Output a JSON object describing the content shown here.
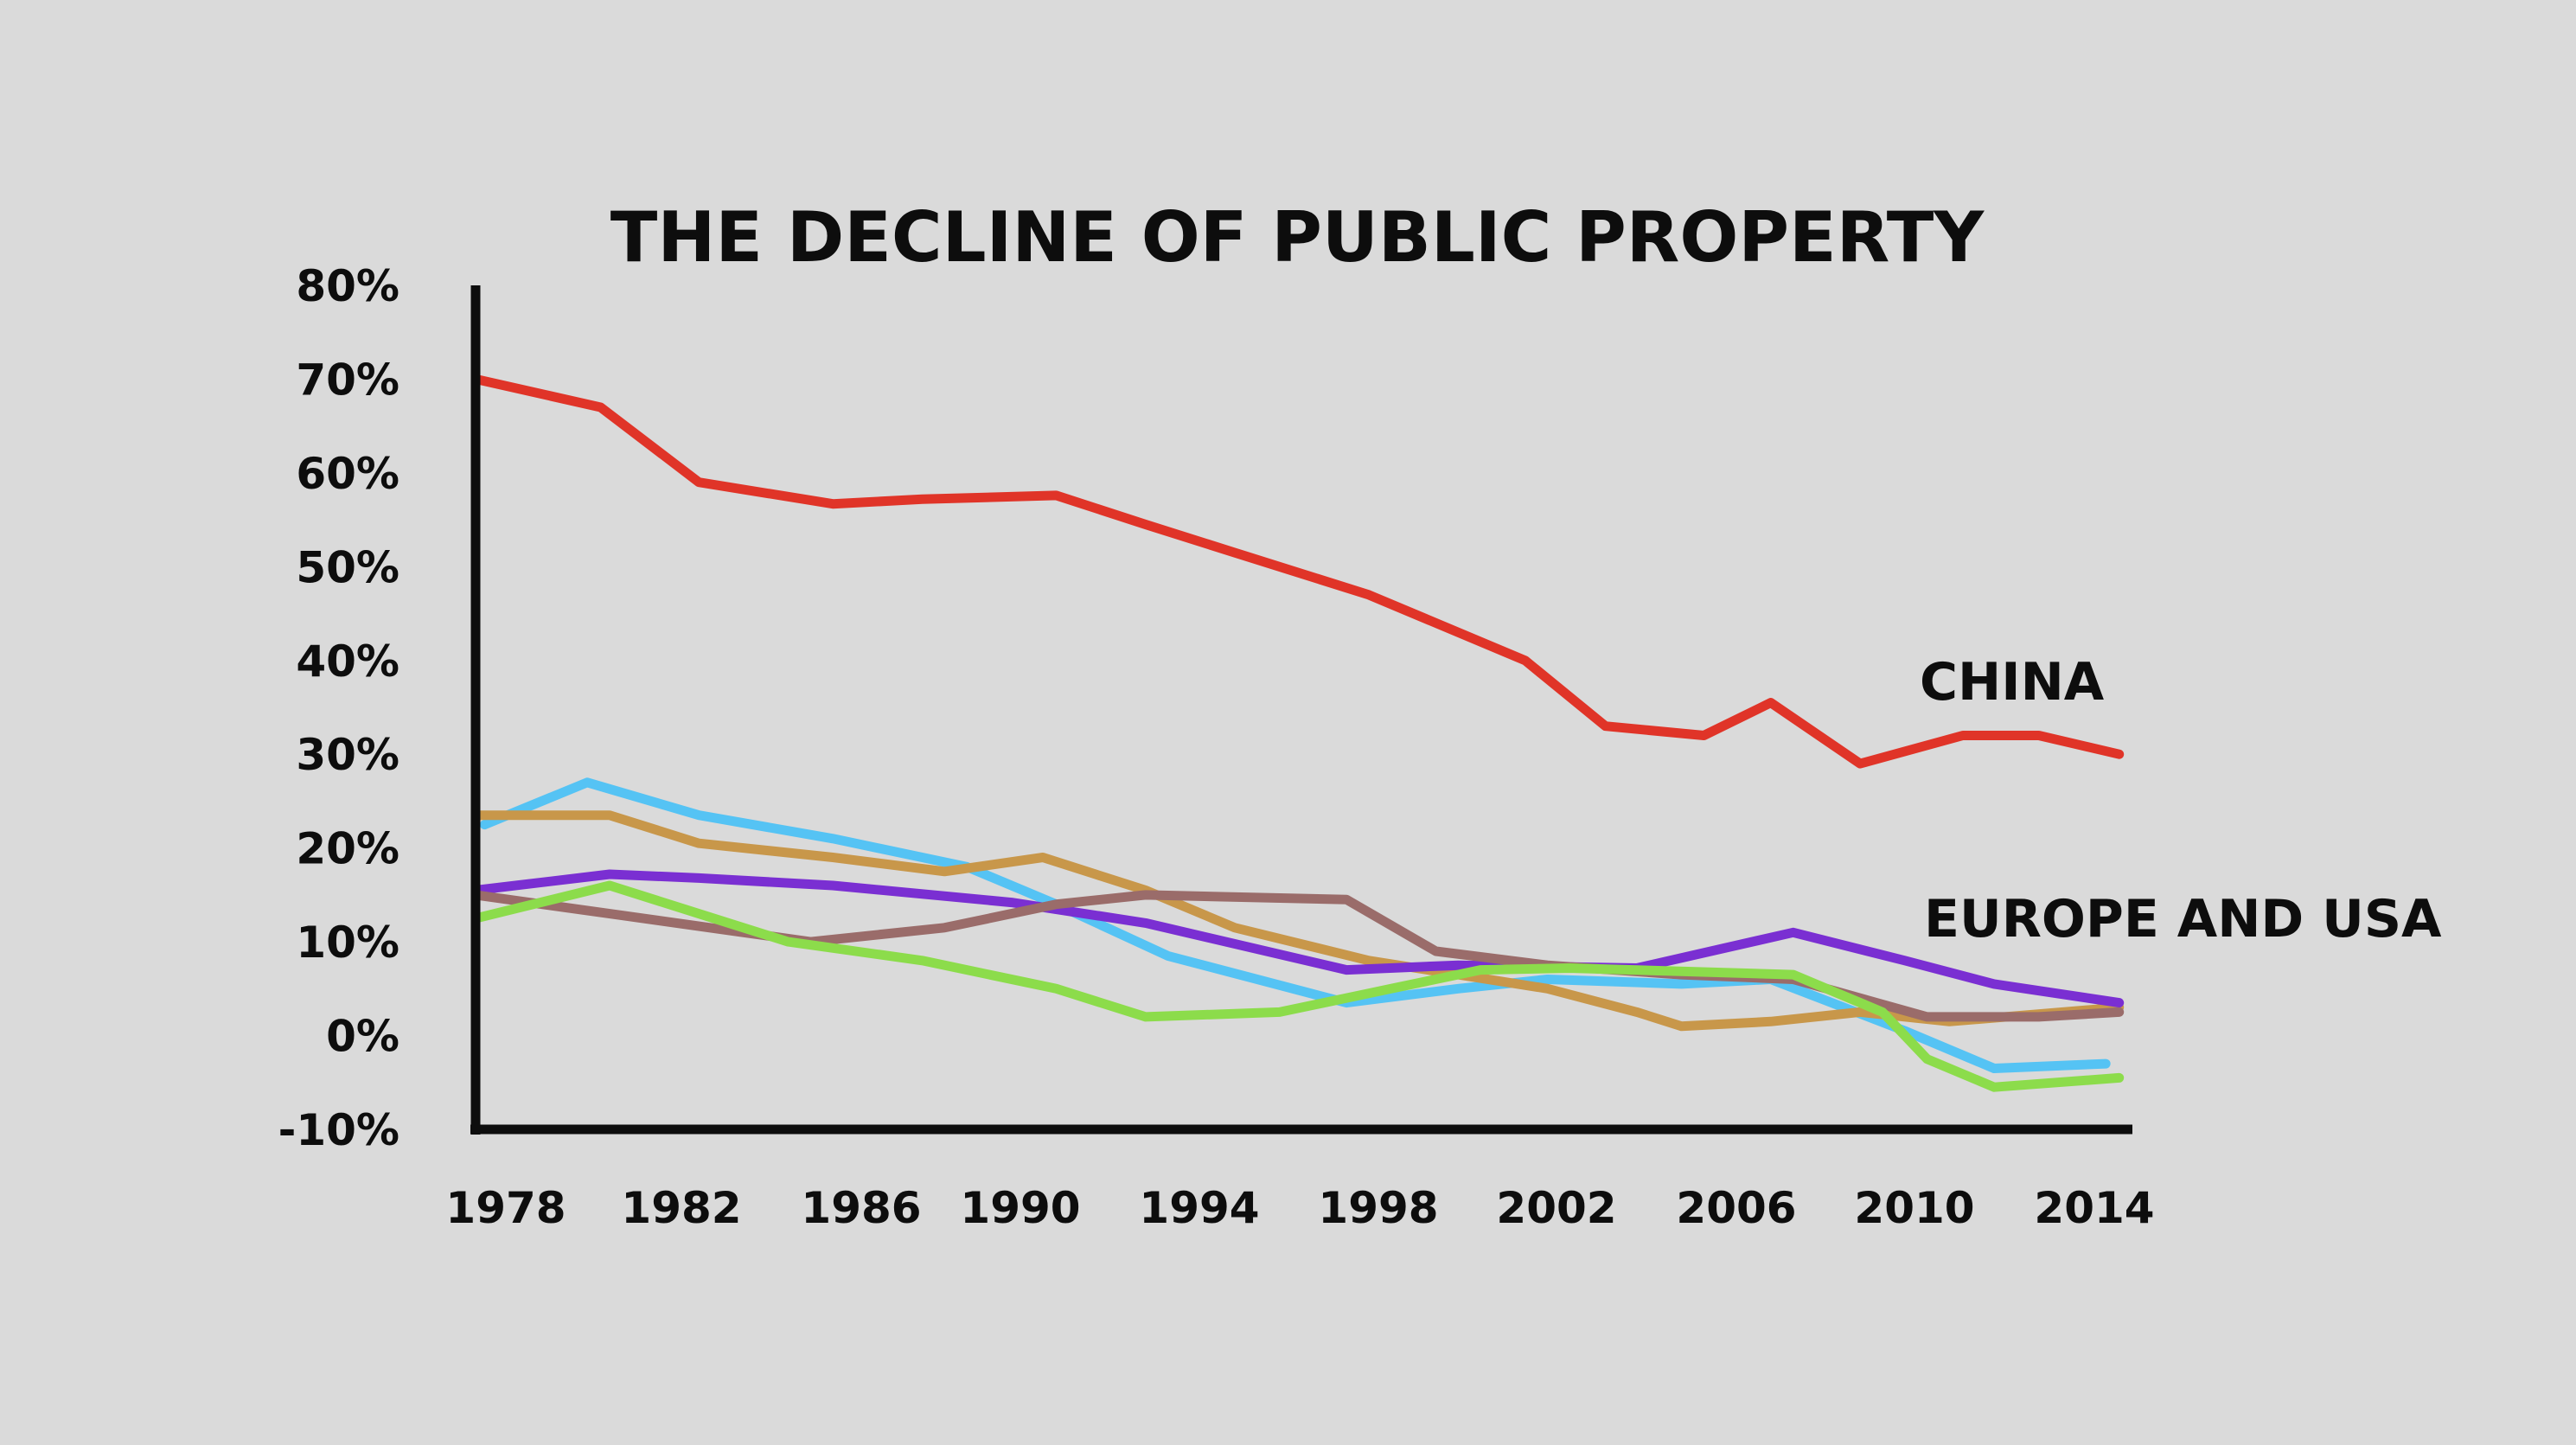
{
  "chart_data": {
    "type": "line",
    "title": "THE DECLINE OF PUBLIC PROPERTY",
    "xlabel": "",
    "ylabel": "",
    "xlim": [
      1978,
      2015
    ],
    "ylim": [
      -10,
      80
    ],
    "x_ticks": [
      "1978",
      "1982",
      "1986",
      "1990",
      "1994",
      "1998",
      "2002",
      "2006",
      "2010",
      "2014"
    ],
    "y_ticks": [
      "80%",
      "70%",
      "60%",
      "50%",
      "40%",
      "30%",
      "20%",
      "10%",
      "0%",
      "-10%"
    ],
    "y_tick_values": [
      80,
      70,
      60,
      50,
      40,
      30,
      20,
      10,
      0,
      -10
    ],
    "x_tick_values": [
      1978,
      1982,
      1986,
      1990,
      1994,
      1998,
      2002,
      2006,
      2010,
      2014
    ],
    "grid": false,
    "legend": "none",
    "annotations": [
      {
        "text": "CHINA",
        "x": 2009,
        "y": 37
      },
      {
        "text": "EUROPE AND USA",
        "x": 2009,
        "y": 12
      }
    ],
    "series": [
      {
        "color": "#e03428",
        "points": [
          [
            1978,
            70
          ],
          [
            1980.8,
            67
          ],
          [
            1983,
            59
          ],
          [
            1986,
            56.7
          ],
          [
            1988,
            57.2
          ],
          [
            1991,
            57.6
          ],
          [
            1993,
            54.5
          ],
          [
            1995,
            51.5
          ],
          [
            1998,
            47
          ],
          [
            2001.5,
            40
          ],
          [
            2003.3,
            33
          ],
          [
            2005.5,
            32
          ],
          [
            2007,
            35.5
          ],
          [
            2009,
            29
          ],
          [
            2011.3,
            32
          ],
          [
            2013,
            32
          ],
          [
            2014.8,
            30
          ]
        ]
      },
      {
        "color": "#55c3f4",
        "points": [
          [
            1978.2,
            22.5
          ],
          [
            1980.5,
            27
          ],
          [
            1983,
            23.5
          ],
          [
            1986,
            21
          ],
          [
            1989,
            18
          ],
          [
            1991,
            14
          ],
          [
            1993.5,
            8.5
          ],
          [
            1997.5,
            3.5
          ],
          [
            2000,
            5
          ],
          [
            2002,
            6
          ],
          [
            2005,
            5.5
          ],
          [
            2007,
            6
          ],
          [
            2010,
            0.5
          ],
          [
            2012,
            -3.5
          ],
          [
            2014.5,
            -3
          ]
        ]
      },
      {
        "color": "#c8974a",
        "points": [
          [
            1978,
            23.5
          ],
          [
            1981,
            23.5
          ],
          [
            1983,
            20.5
          ],
          [
            1986,
            19
          ],
          [
            1988.5,
            17.5
          ],
          [
            1990.7,
            19
          ],
          [
            1993,
            15.5
          ],
          [
            1995,
            11.5
          ],
          [
            1998,
            8
          ],
          [
            2002,
            5
          ],
          [
            2004,
            2.5
          ],
          [
            2005,
            1
          ],
          [
            2007,
            1.5
          ],
          [
            2009,
            2.5
          ],
          [
            2011,
            1.5
          ],
          [
            2014.8,
            3
          ]
        ]
      },
      {
        "color": "#7a2fd2",
        "points": [
          [
            1978,
            15.5
          ],
          [
            1981,
            17.2
          ],
          [
            1983,
            16.8
          ],
          [
            1986,
            16
          ],
          [
            1990,
            14.2
          ],
          [
            1993,
            12
          ],
          [
            1997.5,
            7
          ],
          [
            2000,
            7.5
          ],
          [
            2004,
            7.2
          ],
          [
            2007.5,
            11
          ],
          [
            2010,
            8
          ],
          [
            2012,
            5.5
          ],
          [
            2014.8,
            3.5
          ]
        ]
      },
      {
        "color": "#9a6c6a",
        "points": [
          [
            1978,
            15
          ],
          [
            1981,
            13
          ],
          [
            1984,
            11
          ],
          [
            1985.5,
            10
          ],
          [
            1988.5,
            11.5
          ],
          [
            1991,
            14
          ],
          [
            1993,
            15
          ],
          [
            1997.5,
            14.5
          ],
          [
            1999.5,
            9
          ],
          [
            2002,
            7.5
          ],
          [
            2005,
            6.5
          ],
          [
            2007.5,
            6
          ],
          [
            2010.5,
            2
          ],
          [
            2013,
            2
          ],
          [
            2014.8,
            2.5
          ]
        ]
      },
      {
        "color": "#8cdc4b",
        "points": [
          [
            1978,
            12.5
          ],
          [
            1981,
            16
          ],
          [
            1983,
            13
          ],
          [
            1985,
            10
          ],
          [
            1988,
            8
          ],
          [
            1991,
            5
          ],
          [
            1993,
            2
          ],
          [
            1996,
            2.5
          ],
          [
            1998.5,
            5
          ],
          [
            2000.5,
            7
          ],
          [
            2002.5,
            7.2
          ],
          [
            2007.5,
            6.5
          ],
          [
            2009.5,
            2.5
          ],
          [
            2010.5,
            -2.5
          ],
          [
            2012,
            -5.5
          ],
          [
            2014.8,
            -4.5
          ]
        ]
      }
    ]
  }
}
